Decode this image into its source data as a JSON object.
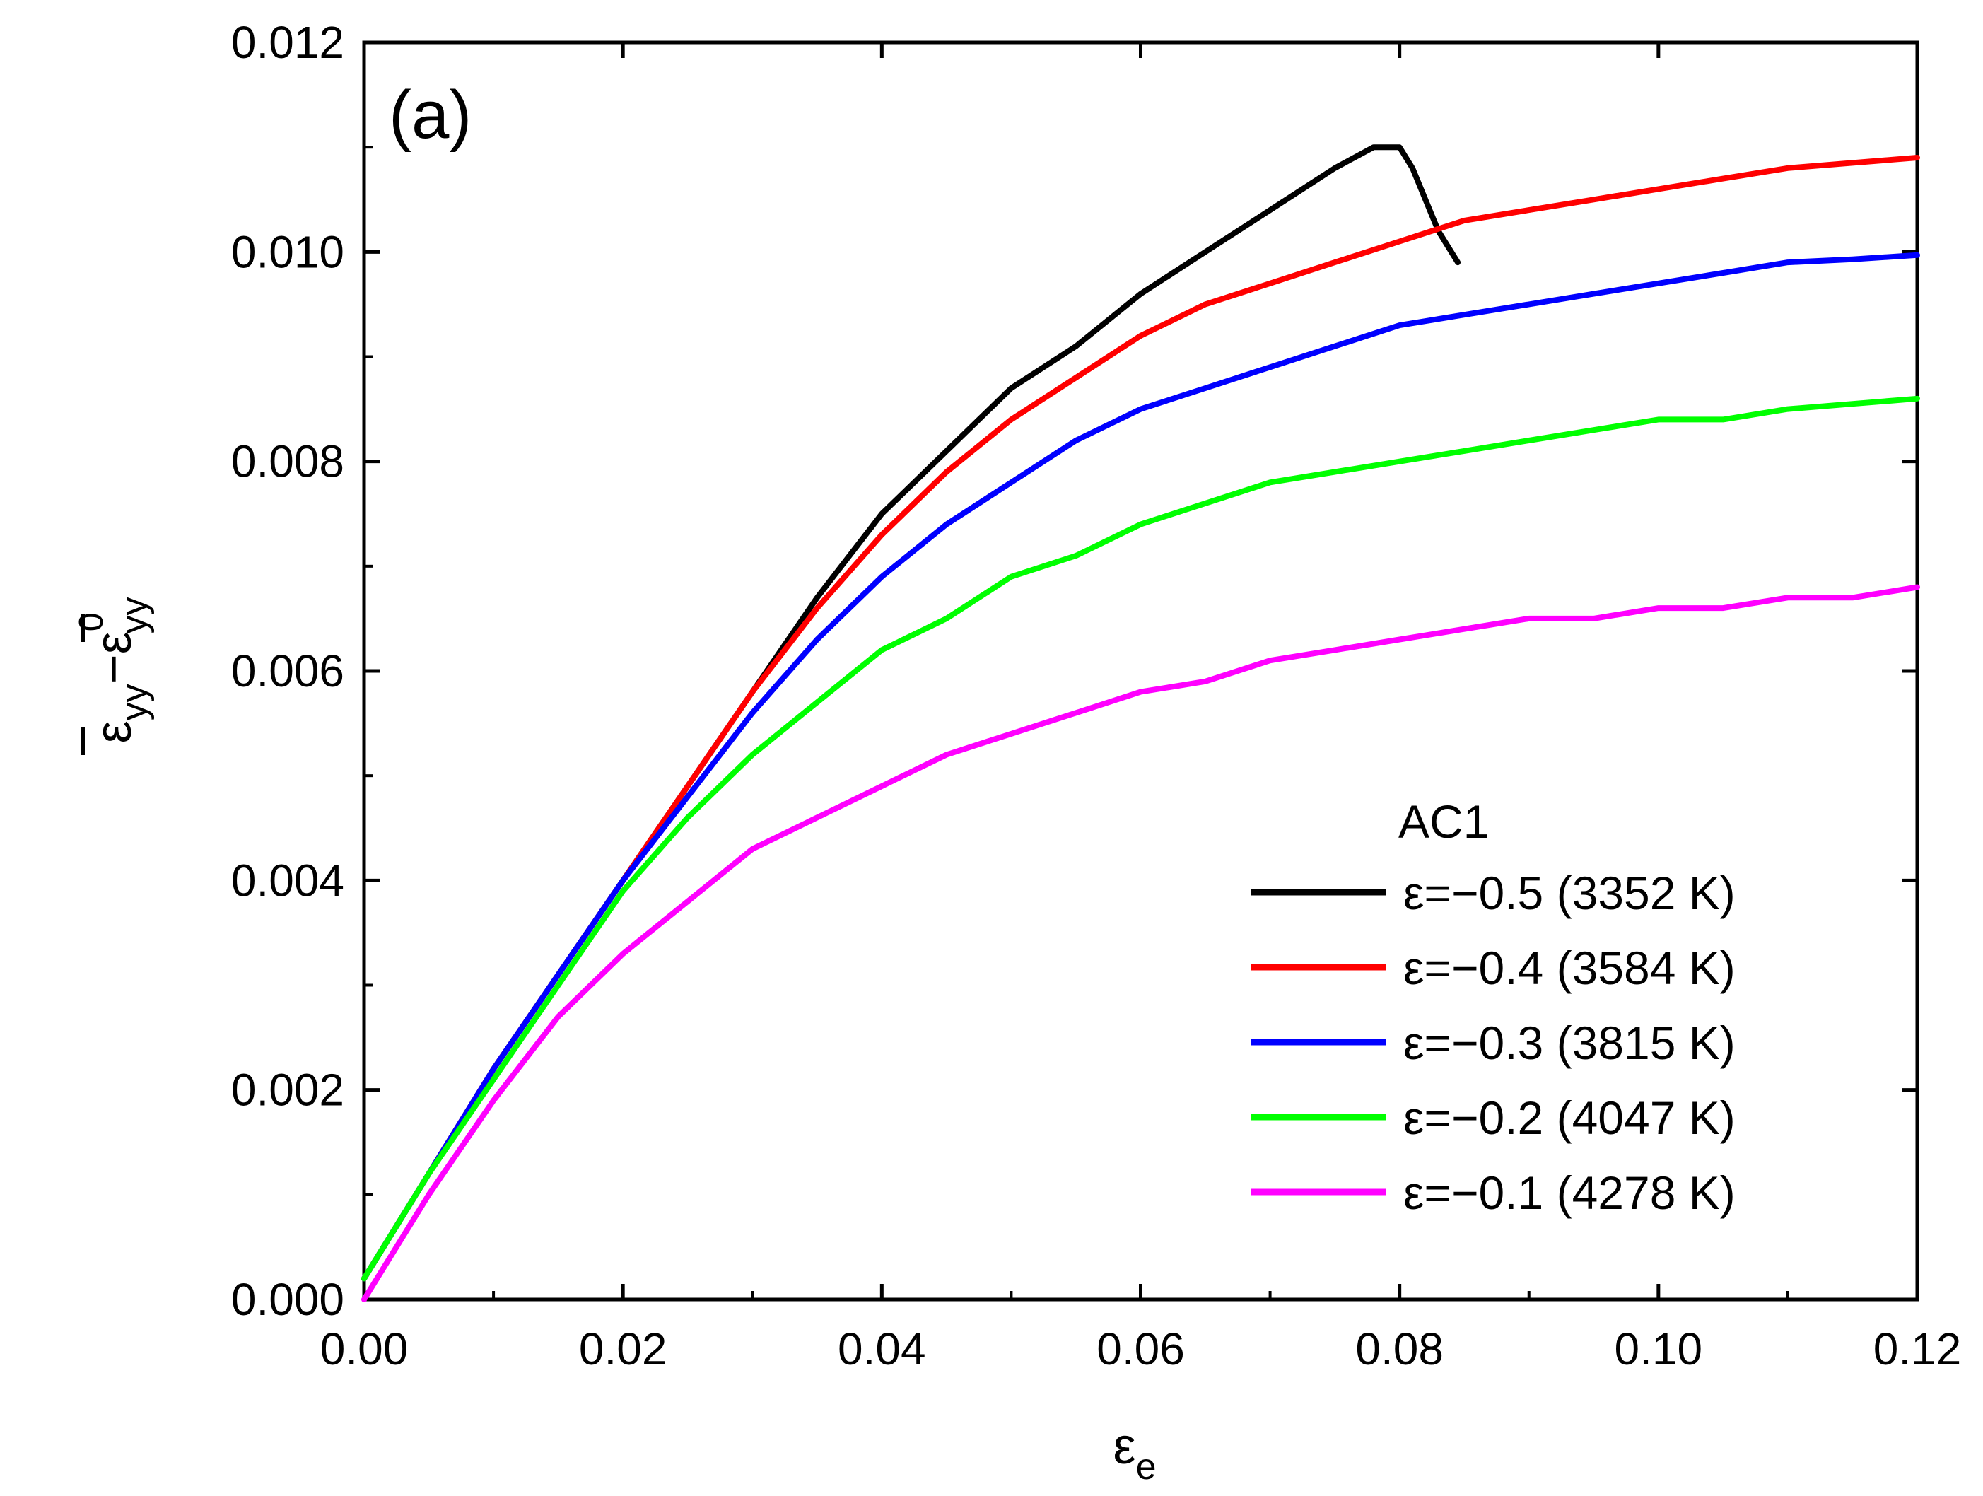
{
  "chart_data": {
    "type": "line",
    "panel_label": "(a)",
    "xlabel_symbol": "ε",
    "xlabel_sub": "e",
    "ylabel": "ε̄yy − ε̄0yy",
    "ylabel_parts": {
      "eps": "ε",
      "sub1": "yy",
      "minus": "−",
      "sup2": "0",
      "sub2": "yy"
    },
    "xlim": [
      0,
      0.12
    ],
    "ylim": [
      0,
      0.012
    ],
    "xticks": [
      0.0,
      0.02,
      0.04,
      0.06,
      0.08,
      0.1,
      0.12
    ],
    "xtick_labels": [
      "0.00",
      "0.02",
      "0.04",
      "0.06",
      "0.08",
      "0.10",
      "0.12"
    ],
    "yticks": [
      0.0,
      0.002,
      0.004,
      0.006,
      0.008,
      0.01,
      0.012
    ],
    "ytick_labels": [
      "0.000",
      "0.002",
      "0.004",
      "0.006",
      "0.008",
      "0.010",
      "0.012"
    ],
    "legend_title": "AC1",
    "legend_position": "bottom-right",
    "series": [
      {
        "name": "ε=−0.5 (3352 K)",
        "color": "#000000",
        "x": [
          0.0,
          0.005,
          0.01,
          0.015,
          0.02,
          0.025,
          0.03,
          0.035,
          0.04,
          0.045,
          0.05,
          0.055,
          0.06,
          0.065,
          0.07,
          0.075,
          0.078,
          0.079,
          0.08,
          0.081,
          0.082,
          0.083,
          0.0845
        ],
        "values": [
          0.0002,
          0.0012,
          0.0022,
          0.0031,
          0.004,
          0.0049,
          0.0058,
          0.0067,
          0.0075,
          0.0081,
          0.0087,
          0.0091,
          0.0096,
          0.01,
          0.0104,
          0.0108,
          0.011,
          0.011,
          0.011,
          0.0108,
          0.0105,
          0.0102,
          0.0099
        ]
      },
      {
        "name": "ε=−0.4 (3584 K)",
        "color": "#ff0000",
        "x": [
          0.0,
          0.005,
          0.01,
          0.015,
          0.02,
          0.025,
          0.03,
          0.035,
          0.04,
          0.045,
          0.05,
          0.055,
          0.06,
          0.065,
          0.07,
          0.075,
          0.08,
          0.085,
          0.09,
          0.095,
          0.1,
          0.105,
          0.11,
          0.115,
          0.12
        ],
        "values": [
          0.0002,
          0.0012,
          0.0022,
          0.0031,
          0.004,
          0.0049,
          0.0058,
          0.0066,
          0.0073,
          0.0079,
          0.0084,
          0.0088,
          0.0092,
          0.0095,
          0.0097,
          0.0099,
          0.0101,
          0.0103,
          0.0104,
          0.0105,
          0.0106,
          0.0107,
          0.0108,
          0.01085,
          0.0109
        ]
      },
      {
        "name": "ε=−0.3 (3815 K)",
        "color": "#0000ff",
        "x": [
          0.0,
          0.005,
          0.01,
          0.015,
          0.02,
          0.025,
          0.03,
          0.035,
          0.04,
          0.045,
          0.05,
          0.055,
          0.06,
          0.065,
          0.07,
          0.075,
          0.08,
          0.085,
          0.09,
          0.095,
          0.1,
          0.105,
          0.11,
          0.115,
          0.12
        ],
        "values": [
          0.0002,
          0.0012,
          0.0022,
          0.0031,
          0.004,
          0.0048,
          0.0056,
          0.0063,
          0.0069,
          0.0074,
          0.0078,
          0.0082,
          0.0085,
          0.0087,
          0.0089,
          0.0091,
          0.0093,
          0.0094,
          0.0095,
          0.0096,
          0.0097,
          0.0098,
          0.0099,
          0.00993,
          0.00997
        ]
      },
      {
        "name": "ε=−0.2 (4047 K)",
        "color": "#00ff00",
        "x": [
          0.0,
          0.005,
          0.01,
          0.015,
          0.02,
          0.025,
          0.03,
          0.035,
          0.04,
          0.045,
          0.05,
          0.055,
          0.06,
          0.065,
          0.07,
          0.075,
          0.08,
          0.085,
          0.09,
          0.095,
          0.1,
          0.105,
          0.11,
          0.115,
          0.12
        ],
        "values": [
          0.0002,
          0.0012,
          0.0021,
          0.003,
          0.0039,
          0.0046,
          0.0052,
          0.0057,
          0.0062,
          0.0065,
          0.0069,
          0.0071,
          0.0074,
          0.0076,
          0.0078,
          0.0079,
          0.008,
          0.0081,
          0.0082,
          0.0083,
          0.0084,
          0.0084,
          0.0085,
          0.00855,
          0.0086
        ]
      },
      {
        "name": "ε=−0.1 (4278 K)",
        "color": "#ff00ff",
        "x": [
          0.0,
          0.005,
          0.01,
          0.015,
          0.02,
          0.025,
          0.03,
          0.035,
          0.04,
          0.045,
          0.05,
          0.055,
          0.06,
          0.065,
          0.07,
          0.075,
          0.08,
          0.085,
          0.09,
          0.095,
          0.1,
          0.105,
          0.11,
          0.115,
          0.12
        ],
        "values": [
          0.0,
          0.001,
          0.0019,
          0.0027,
          0.0033,
          0.0038,
          0.0043,
          0.0046,
          0.0049,
          0.0052,
          0.0054,
          0.0056,
          0.0058,
          0.0059,
          0.0061,
          0.0062,
          0.0063,
          0.0064,
          0.0065,
          0.0065,
          0.0066,
          0.0066,
          0.0067,
          0.0067,
          0.0068
        ]
      }
    ]
  }
}
